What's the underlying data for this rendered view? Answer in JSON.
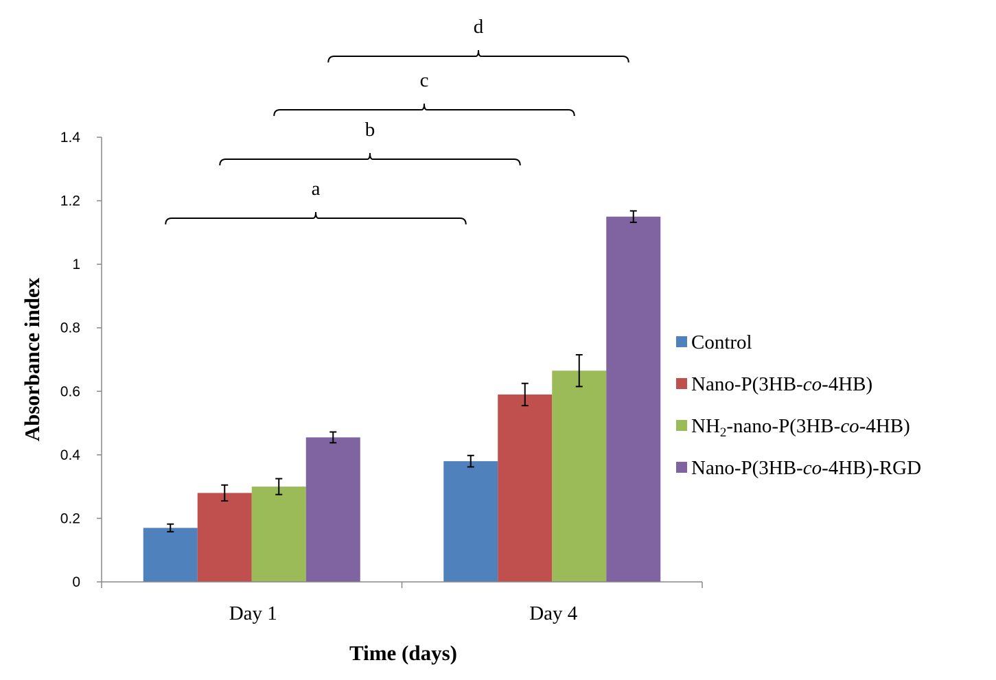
{
  "chart_data": {
    "type": "bar",
    "title": "",
    "xlabel": "Time (days)",
    "ylabel": "Absorbance index",
    "ylim": [
      0,
      1.4
    ],
    "yticks": [
      0,
      0.2,
      0.4,
      0.6,
      0.8,
      1,
      1.2,
      1.4
    ],
    "ytick_labels": [
      "0",
      "0.2",
      "0.4",
      "0.6",
      "0.8",
      "1",
      "1.2",
      "1.4"
    ],
    "categories": [
      "Day 1",
      "Day 4"
    ],
    "legend_position": "right",
    "series": [
      {
        "name": "Control",
        "legend_parts": [
          "Control"
        ],
        "color": "#4f81bd",
        "values": [
          0.17,
          0.38
        ],
        "errors": [
          0.012,
          0.018
        ]
      },
      {
        "name": "Nano-P(3HB-co-4HB)",
        "legend_parts": [
          "Nano-P(3HB-",
          "co",
          "-4HB)"
        ],
        "color": "#c0504d",
        "values": [
          0.28,
          0.59
        ],
        "errors": [
          0.025,
          0.035
        ]
      },
      {
        "name": "NH2-nano-P(3HB-co-4HB)",
        "legend_parts": [
          "NH",
          "2",
          "-nano-P(3HB-",
          "co",
          "-4HB)"
        ],
        "color": "#9bbb59",
        "values": [
          0.3,
          0.665
        ],
        "errors": [
          0.025,
          0.05
        ]
      },
      {
        "name": "Nano-P(3HB-co-4HB)-RGD",
        "legend_parts": [
          "Nano-P(3HB-",
          "co",
          "-4HB)-RGD"
        ],
        "color": "#8064a2",
        "values": [
          0.455,
          1.15
        ],
        "errors": [
          0.017,
          0.018
        ]
      }
    ],
    "significance_brackets": [
      {
        "label": "a",
        "from": "Day 1 / Control",
        "to": "Day 4 / Control"
      },
      {
        "label": "b",
        "from": "Day 1 / Nano-P(3HB-co-4HB)",
        "to": "Day 4 / Nano-P(3HB-co-4HB)"
      },
      {
        "label": "c",
        "from": "Day 1 / NH2-nano-P(3HB-co-4HB)",
        "to": "Day 4 / NH2-nano-P(3HB-co-4HB)"
      },
      {
        "label": "d",
        "from": "Day 1 / Nano-P(3HB-co-4HB)-RGD",
        "to": "Day 4 / Nano-P(3HB-co-4HB)-RGD"
      }
    ]
  }
}
